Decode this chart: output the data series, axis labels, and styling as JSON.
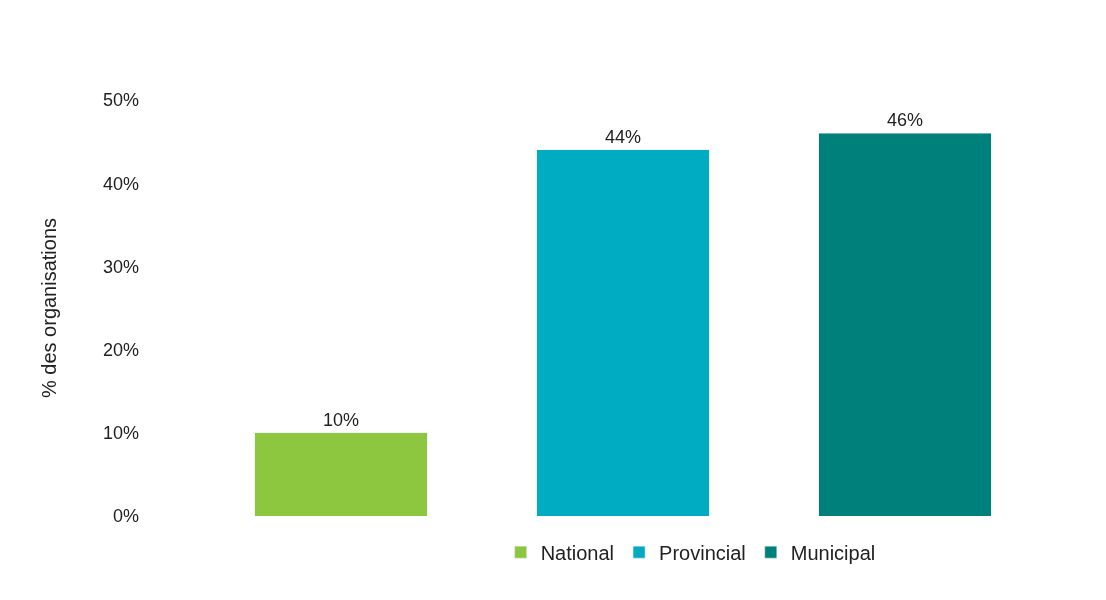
{
  "chart_data": {
    "type": "bar",
    "ylabel": "% des organisations",
    "categories": [
      null,
      null,
      null
    ],
    "stacked": true,
    "series": [
      {
        "name": "National",
        "color": "#8dc63f",
        "values": [
          10,
          null,
          null
        ],
        "value_labels": [
          "10%",
          null,
          null
        ]
      },
      {
        "name": "Provincial",
        "color": "#00acc1",
        "values": [
          null,
          44,
          null
        ],
        "value_labels": [
          null,
          "44%",
          null
        ]
      },
      {
        "name": "Municipal",
        "color": "#00807a",
        "values": [
          null,
          null,
          46
        ],
        "value_labels": [
          null,
          null,
          "46%"
        ]
      }
    ],
    "ylim": [
      0,
      50
    ],
    "yticks": [
      {
        "value": 0,
        "label": "0%"
      },
      {
        "value": 10,
        "label": "10%"
      },
      {
        "value": 20,
        "label": "20%"
      },
      {
        "value": 30,
        "label": "30%"
      },
      {
        "value": 40,
        "label": "40%"
      },
      {
        "value": 50,
        "label": "50%"
      }
    ],
    "tick_labels": "y",
    "legend": "bottom"
  }
}
